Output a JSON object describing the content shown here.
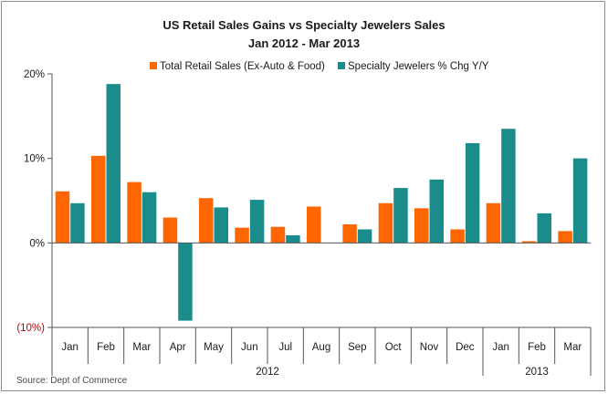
{
  "chart_data": {
    "type": "bar",
    "title": "US Retail Sales Gains vs Specialty Jewelers Sales",
    "subtitle": "Jan 2012 - Mar 2013",
    "categories": [
      "Jan",
      "Feb",
      "Mar",
      "Apr",
      "May",
      "Jun",
      "Jul",
      "Aug",
      "Sep",
      "Oct",
      "Nov",
      "Dec",
      "Jan",
      "Feb",
      "Mar"
    ],
    "groups": [
      {
        "label": "2012",
        "count": 12
      },
      {
        "label": "2013",
        "count": 3
      }
    ],
    "series": [
      {
        "name": "Total Retail Sales (Ex-Auto & Food)",
        "color": "#ff6600",
        "values": [
          6.1,
          10.3,
          7.2,
          3.0,
          5.3,
          1.8,
          1.9,
          4.3,
          2.2,
          4.7,
          4.1,
          1.6,
          4.7,
          0.2,
          1.4
        ]
      },
      {
        "name": "Specialty Jewelers % Chg Y/Y",
        "color": "#1a8c8c",
        "values": [
          4.7,
          18.8,
          6.0,
          -9.2,
          4.2,
          5.1,
          0.9,
          0.0,
          1.6,
          6.5,
          7.5,
          11.8,
          13.5,
          3.5,
          10.0
        ]
      }
    ],
    "ylim": [
      -10,
      20
    ],
    "yticks": [
      {
        "value": 20,
        "label": "20%"
      },
      {
        "value": 10,
        "label": "10%"
      },
      {
        "value": 0,
        "label": "0%"
      },
      {
        "value": -10,
        "label": "(10%)"
      }
    ],
    "legend_position": "top",
    "grid": false,
    "source": "Source:  Dept of Commerce"
  }
}
